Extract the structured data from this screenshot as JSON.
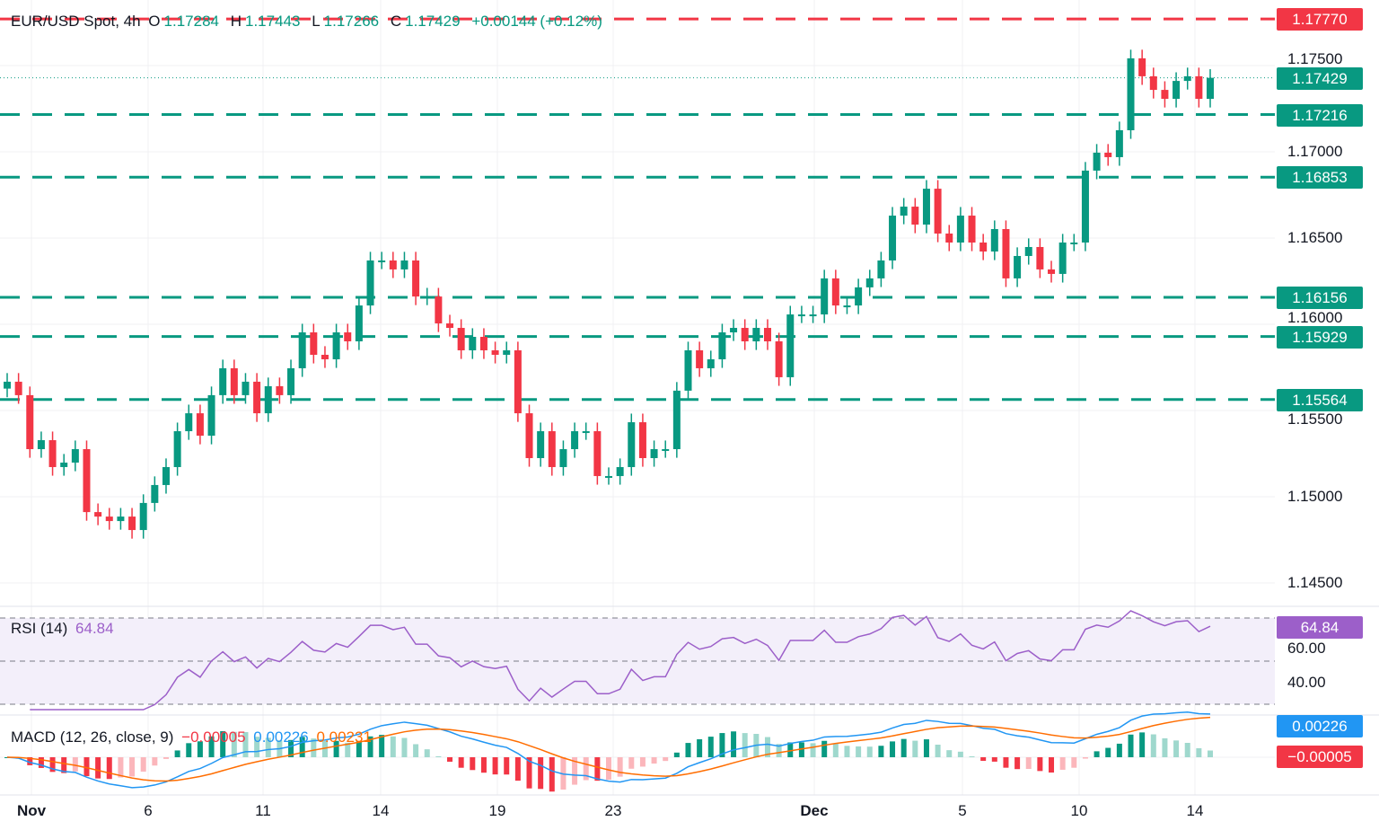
{
  "header": {
    "symbol": "EUR/USD Spot, 4h",
    "o_label": "O",
    "open": "1.17284",
    "h_label": "H",
    "high": "1.17443",
    "l_label": "L",
    "low": "1.17266",
    "c_label": "C",
    "close": "1.17429",
    "change": "+0.00144 (+0.12%)"
  },
  "rsi": {
    "label": "RSI (14)",
    "value": "64.84",
    "axis": [
      "60.00",
      "40.00"
    ]
  },
  "macd": {
    "label": "MACD (12, 26, close, 9)",
    "hist": "−0.00005",
    "macd": "0.00226",
    "signal": "0.00231",
    "tag_macd": "0.00226",
    "tag_hist": "−0.00005"
  },
  "price_axis": [
    "1.17500",
    "1.17000",
    "1.16500",
    "1.16000",
    "1.15500",
    "1.15000",
    "1.14500"
  ],
  "levels": [
    {
      "value": "1.17770",
      "color": "#f23645"
    },
    {
      "value": "1.17216",
      "color": "#089981"
    },
    {
      "value": "1.16853",
      "color": "#089981"
    },
    {
      "value": "1.16156",
      "color": "#089981"
    },
    {
      "value": "1.15929",
      "color": "#089981"
    },
    {
      "value": "1.15564",
      "color": "#089981"
    }
  ],
  "last_price": {
    "value": "1.17429",
    "color": "#089981"
  },
  "x_axis": [
    "Nov",
    "6",
    "11",
    "14",
    "19",
    "23",
    "Dec",
    "5",
    "10",
    "14"
  ],
  "colors": {
    "up": "#089981",
    "down": "#f23645",
    "rsi": "#9c5fc9",
    "macd": "#2196f3",
    "signal": "#ff6d00"
  },
  "chart_data": {
    "type": "candlestick",
    "title": "EUR/USD Spot, 4h",
    "ylim": [
      1.1435,
      1.1785
    ],
    "closes": [
      1.15667,
      1.15589,
      1.15276,
      1.15328,
      1.15172,
      1.15198,
      1.15276,
      1.14911,
      1.14885,
      1.14859,
      1.14885,
      1.14807,
      1.14964,
      1.15068,
      1.15172,
      1.1538,
      1.15484,
      1.15354,
      1.15589,
      1.15745,
      1.15589,
      1.15667,
      1.15484,
      1.15641,
      1.15589,
      1.15745,
      1.15953,
      1.15823,
      1.15797,
      1.15953,
      1.15901,
      1.16109,
      1.1637,
      1.1637,
      1.16318,
      1.1637,
      1.16161,
      1.16161,
      1.16005,
      1.15979,
      1.15849,
      1.15927,
      1.15849,
      1.15823,
      1.15849,
      1.15484,
      1.15224,
      1.1538,
      1.15172,
      1.15276,
      1.1538,
      1.1538,
      1.1512,
      1.1512,
      1.15172,
      1.15432,
      1.15224,
      1.15276,
      1.15276,
      1.15615,
      1.15849,
      1.15745,
      1.15797,
      1.15953,
      1.15979,
      1.15901,
      1.15979,
      1.15901,
      1.15693,
      1.16057,
      1.16057,
      1.16057,
      1.16266,
      1.16109,
      1.16109,
      1.16214,
      1.16266,
      1.1637,
      1.1663,
      1.16682,
      1.16578,
      1.16786,
      1.16526,
      1.16474,
      1.1663,
      1.16474,
      1.16422,
      1.16552,
      1.16266,
      1.16396,
      1.16448,
      1.16318,
      1.16292,
      1.16474,
      1.16474,
      1.16891,
      1.16995,
      1.16969,
      1.17125,
      1.17542,
      1.17438,
      1.17359,
      1.17307,
      1.17411,
      1.17438,
      1.17307,
      1.17429
    ]
  }
}
